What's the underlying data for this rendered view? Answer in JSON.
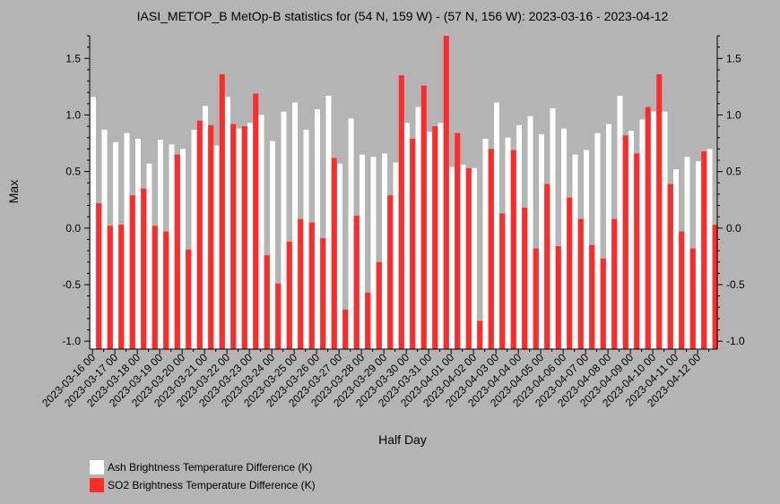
{
  "chart_data": {
    "type": "bar",
    "title": "IASI_METOP_B MetOp-B statistics for (54 N, 159 W) - (57 N, 156 W): 2023-03-16 - 2023-04-12",
    "xlabel": "Half Day",
    "ylabel": "Max",
    "ylim": [
      -1.07,
      1.7
    ],
    "y_ticks": [
      -1.0,
      -0.5,
      0.0,
      0.5,
      1.0,
      1.5
    ],
    "y_tick_labels": [
      "-1.0",
      "-0.5",
      "0.0",
      "0.5",
      "1.0",
      "1.5"
    ],
    "categories": [
      "2023-03-16 00",
      "2023-03-16 12",
      "2023-03-17 00",
      "2023-03-17 12",
      "2023-03-18 00",
      "2023-03-18 12",
      "2023-03-19 00",
      "2023-03-19 12",
      "2023-03-20 00",
      "2023-03-20 12",
      "2023-03-21 00",
      "2023-03-21 12",
      "2023-03-22 00",
      "2023-03-22 12",
      "2023-03-23 00",
      "2023-03-23 12",
      "2023-03-24 00",
      "2023-03-24 12",
      "2023-03-25 00",
      "2023-03-25 12",
      "2023-03-26 00",
      "2023-03-26 12",
      "2023-03-27 00",
      "2023-03-27 12",
      "2023-03-28 00",
      "2023-03-28 12",
      "2023-03-29 00",
      "2023-03-29 12",
      "2023-03-30 00",
      "2023-03-30 12",
      "2023-03-31 00",
      "2023-03-31 12",
      "2023-04-01 00",
      "2023-04-01 12",
      "2023-04-02 00",
      "2023-04-02 12",
      "2023-04-03 00",
      "2023-04-03 12",
      "2023-04-04 00",
      "2023-04-04 12",
      "2023-04-05 00",
      "2023-04-05 12",
      "2023-04-06 00",
      "2023-04-06 12",
      "2023-04-07 00",
      "2023-04-07 12",
      "2023-04-08 00",
      "2023-04-08 12",
      "2023-04-09 00",
      "2023-04-09 12",
      "2023-04-10 00",
      "2023-04-10 12",
      "2023-04-11 00",
      "2023-04-11 12",
      "2023-04-12 00",
      "2023-04-12 12"
    ],
    "tick_labels": [
      "2023-03-16 00",
      "2023-03-17 00",
      "2023-03-18 00",
      "2023-03-19 00",
      "2023-03-20 00",
      "2023-03-21 00",
      "2023-03-22 00",
      "2023-03-23 00",
      "2023-03-24 00",
      "2023-03-25 00",
      "2023-03-26 00",
      "2023-03-27 00",
      "2023-03-28 00",
      "2023-03-29 00",
      "2023-03-30 00",
      "2023-03-31 00",
      "2023-04-01 00",
      "2023-04-02 00",
      "2023-04-03 00",
      "2023-04-04 00",
      "2023-04-05 00",
      "2023-04-06 00",
      "2023-04-07 00",
      "2023-04-08 00",
      "2023-04-09 00",
      "2023-04-10 00",
      "2023-04-11 00",
      "2023-04-12 00"
    ],
    "series": [
      {
        "name": "Ash Brightness Temperature Difference (K)",
        "color": "#ffffff",
        "values": [
          1.16,
          0.87,
          0.76,
          0.84,
          0.79,
          0.57,
          0.78,
          0.74,
          0.7,
          0.87,
          1.08,
          0.73,
          1.16,
          0.88,
          0.93,
          1.0,
          0.77,
          1.03,
          1.11,
          0.87,
          1.05,
          1.17,
          0.57,
          0.97,
          0.65,
          0.63,
          0.66,
          0.58,
          0.93,
          1.07,
          0.85,
          0.93,
          0.54,
          0.56,
          0.53,
          0.79,
          1.11,
          0.8,
          0.91,
          0.99,
          0.83,
          1.06,
          0.88,
          0.65,
          0.69,
          0.84,
          0.92,
          1.17,
          0.86,
          0.96,
          1.03,
          1.03,
          0.52,
          0.63,
          0.59,
          0.7
        ]
      },
      {
        "name": "SO2 Brightness Temperature Difference (K)",
        "color": "#ff2a2a",
        "values": [
          0.22,
          0.02,
          0.03,
          0.29,
          0.35,
          0.02,
          -0.03,
          0.65,
          -0.19,
          0.95,
          0.91,
          1.36,
          0.92,
          0.9,
          1.19,
          -0.24,
          -0.49,
          -0.12,
          0.08,
          0.05,
          -0.09,
          0.62,
          -0.72,
          0.11,
          -0.57,
          -0.3,
          0.29,
          1.35,
          0.79,
          1.26,
          0.9,
          1.7,
          0.84,
          0.53,
          -0.82,
          0.7,
          0.13,
          0.69,
          0.18,
          -0.18,
          0.39,
          -0.16,
          0.27,
          0.08,
          -0.15,
          -0.27,
          0.08,
          0.82,
          0.66,
          1.07,
          1.36,
          0.39,
          -0.03,
          -0.18,
          0.68,
          0.03
        ]
      }
    ],
    "grid": false,
    "legend_position": "bottom-left"
  }
}
